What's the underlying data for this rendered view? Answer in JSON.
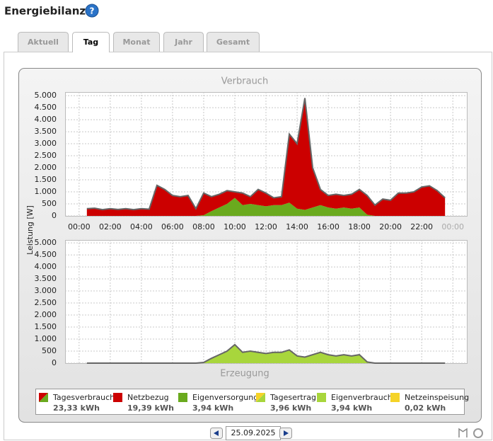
{
  "header": {
    "title": "Energiebilanz",
    "help": "?"
  },
  "tabs": [
    "Aktuell",
    "Tag",
    "Monat",
    "Jahr",
    "Gesamt"
  ],
  "active_tab": 1,
  "chart_data": [
    {
      "type": "area",
      "title": "Verbrauch",
      "y_label": "Leistung [W]",
      "stacked": true,
      "x": [
        0.5,
        1,
        1.5,
        2,
        2.5,
        3,
        3.5,
        4,
        4.5,
        5,
        5.5,
        6,
        6.5,
        7,
        7.5,
        8,
        8.5,
        9,
        9.5,
        10,
        10.5,
        11,
        11.5,
        12,
        12.5,
        13,
        13.5,
        14,
        14.5,
        15,
        15.5,
        16,
        16.5,
        17,
        17.5,
        18,
        18.5,
        19,
        19.5,
        20,
        20.5,
        21,
        21.5,
        22,
        22.5,
        23,
        23.5
      ],
      "series": [
        {
          "color": "#6aaa1e",
          "values": [
            0,
            0,
            0,
            0,
            0,
            0,
            0,
            0,
            0,
            0,
            0,
            0,
            0,
            0,
            0,
            30,
            200,
            350,
            500,
            750,
            450,
            500,
            450,
            400,
            450,
            450,
            550,
            300,
            250,
            350,
            450,
            350,
            300,
            350,
            300,
            350,
            50,
            0,
            0,
            0,
            0,
            0,
            0,
            0,
            0,
            0,
            0
          ]
        },
        {
          "color": "#cc0000",
          "values": [
            300,
            320,
            260,
            300,
            270,
            300,
            260,
            300,
            280,
            1270,
            1100,
            850,
            800,
            850,
            300,
            920,
            600,
            550,
            550,
            250,
            500,
            300,
            650,
            550,
            300,
            350,
            2850,
            2700,
            4650,
            1650,
            650,
            500,
            600,
            500,
            600,
            750,
            800,
            450,
            700,
            650,
            950,
            950,
            1000,
            1200,
            1250,
            1050,
            750
          ]
        }
      ],
      "xlim": [
        -0.9,
        24.9
      ],
      "xticks": [
        {
          "value": 0,
          "label": "00:00"
        },
        {
          "value": 2,
          "label": "02:00"
        },
        {
          "value": 4,
          "label": "04:00"
        },
        {
          "value": 6,
          "label": "06:00"
        },
        {
          "value": 8,
          "label": "08:00"
        },
        {
          "value": 10,
          "label": "10:00"
        },
        {
          "value": 12,
          "label": "12:00"
        },
        {
          "value": 14,
          "label": "14:00"
        },
        {
          "value": 16,
          "label": "16:00"
        },
        {
          "value": 18,
          "label": "18:00"
        },
        {
          "value": 20,
          "label": "20:00"
        },
        {
          "value": 22,
          "label": "22:00"
        },
        {
          "value": 24,
          "label": "00:00",
          "color": "#aaaaaa"
        }
      ],
      "ylim": [
        0,
        5150
      ],
      "yticks": [
        0,
        500,
        {
          "value": 1000,
          "label": "1.000"
        },
        {
          "value": 1500,
          "label": "1.500"
        },
        {
          "value": 2000,
          "label": "2.000"
        },
        {
          "value": 2500,
          "label": "2.500"
        },
        {
          "value": 3000,
          "label": "3.000"
        },
        {
          "value": 3500,
          "label": "3.500"
        },
        {
          "value": 4000,
          "label": "4.000"
        },
        {
          "value": 4500,
          "label": "4.500"
        },
        {
          "value": 5000,
          "label": "5.000"
        }
      ],
      "grid": true
    },
    {
      "type": "area",
      "title": "Erzeugung",
      "stacked": true,
      "x": [
        0.5,
        1,
        1.5,
        2,
        2.5,
        3,
        3.5,
        4,
        4.5,
        5,
        5.5,
        6,
        6.5,
        7,
        7.5,
        8,
        8.5,
        9,
        9.5,
        10,
        10.5,
        11,
        11.5,
        12,
        12.5,
        13,
        13.5,
        14,
        14.5,
        15,
        15.5,
        16,
        16.5,
        17,
        17.5,
        18,
        18.5,
        19,
        19.5,
        20,
        20.5,
        21,
        21.5,
        22,
        22.5,
        23,
        23.5
      ],
      "series": [
        {
          "color": "#a8d63c",
          "values": [
            0,
            0,
            0,
            0,
            0,
            0,
            0,
            0,
            0,
            0,
            0,
            0,
            0,
            0,
            0,
            30,
            200,
            350,
            500,
            750,
            450,
            500,
            450,
            400,
            450,
            450,
            550,
            300,
            250,
            350,
            450,
            350,
            300,
            350,
            300,
            350,
            50,
            0,
            0,
            0,
            0,
            0,
            0,
            0,
            0,
            0,
            0
          ]
        },
        {
          "color": "#f5d327",
          "values": [
            0,
            0,
            0,
            0,
            0,
            0,
            0,
            0,
            0,
            0,
            0,
            0,
            0,
            0,
            0,
            0,
            0,
            0,
            0,
            20,
            0,
            0,
            0,
            0,
            0,
            0,
            0,
            0,
            0,
            0,
            0,
            0,
            0,
            0,
            0,
            0,
            0,
            0,
            0,
            0,
            0,
            0,
            0,
            0,
            0,
            0,
            0
          ]
        }
      ],
      "xlim": [
        -0.9,
        24.9
      ],
      "ylim": [
        0,
        5120
      ],
      "yticks": [
        0,
        500,
        {
          "value": 1000,
          "label": "1.000"
        },
        {
          "value": 1500,
          "label": "1.500"
        },
        {
          "value": 2000,
          "label": "2.000"
        },
        {
          "value": 2500,
          "label": "2.500"
        },
        {
          "value": 3000,
          "label": "3.000"
        },
        {
          "value": 3500,
          "label": "3.500"
        },
        {
          "value": 4000,
          "label": "4.000"
        },
        {
          "value": 4500,
          "label": "4.500"
        },
        {
          "value": 5000,
          "label": "5.000"
        }
      ],
      "grid": true
    }
  ],
  "legend": [
    {
      "name": "Tagesverbrauch",
      "total": "23,33 kWh",
      "colors": [
        "#cc0000",
        "#6aaa1e"
      ]
    },
    {
      "name": "Netzbezug",
      "total": "19,39 kWh",
      "colors": [
        "#cc0000"
      ]
    },
    {
      "name": "Eigenversorgung",
      "total": "3,94 kWh",
      "colors": [
        "#6aaa1e"
      ]
    },
    {
      "name": "Tagesertrag",
      "total": "3,96 kWh",
      "colors": [
        "#f5d327",
        "#a8d63c"
      ]
    },
    {
      "name": "Eigenverbrauch",
      "total": "3,94 kWh",
      "colors": [
        "#a8d63c"
      ]
    },
    {
      "name": "Netzeinspeisung",
      "total": "0,02 kWh",
      "colors": [
        "#f5d327"
      ]
    }
  ],
  "date": "25.09.2025"
}
